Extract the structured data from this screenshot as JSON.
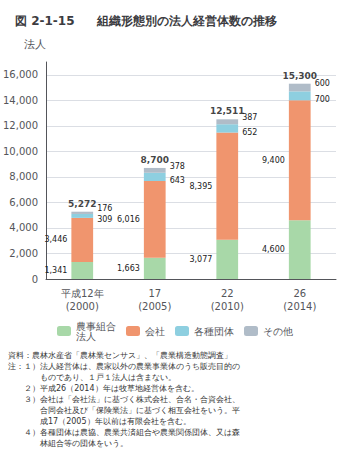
{
  "chart_data": {
    "type": "bar",
    "subtitle": "図 2-1-15",
    "title": "組織形態別の法人経営体数の推移",
    "ylabel": "法人",
    "categories": [
      "平成12年\n(2000)",
      "17\n(2005)",
      "22\n(2010)",
      "26\n(2014)"
    ],
    "series": [
      {
        "name": "農事組合\n法人",
        "color": "#a8d8a8",
        "values": [
          1341,
          1663,
          3077,
          4600
        ],
        "value_labels": [
          "1,341",
          "1,663",
          "3,077",
          "4,600"
        ]
      },
      {
        "name": "会社",
        "color": "#f0956e",
        "values": [
          3446,
          6016,
          8395,
          9400
        ],
        "value_labels": [
          "3,446",
          "6,016",
          "8,395",
          "9,400"
        ]
      },
      {
        "name": "各種団体",
        "color": "#8ecfe0",
        "values": [
          309,
          643,
          652,
          700
        ],
        "value_labels": [
          "309",
          "643",
          "652",
          "700"
        ]
      },
      {
        "name": "その他",
        "color": "#b0bcc8",
        "values": [
          176,
          378,
          387,
          600
        ],
        "value_labels": [
          "176",
          "378",
          "387",
          "600"
        ]
      }
    ],
    "totals": [
      5272,
      8700,
      12511,
      15300
    ],
    "total_labels": [
      "5,272",
      "8,700",
      "12,511",
      "15,300"
    ],
    "stacked": true,
    "data_labels": true,
    "ylim": [
      0,
      17000
    ],
    "yticks": [
      0,
      {
        "value": 2000,
        "label": "2,000"
      },
      {
        "value": 4000,
        "label": "4,000"
      },
      {
        "value": 6000,
        "label": "6,000"
      },
      {
        "value": 8000,
        "label": "8,000"
      },
      {
        "value": 10000,
        "label": "10,000"
      },
      {
        "value": 12000,
        "label": "12,000"
      },
      {
        "value": 14000,
        "label": "14,000"
      },
      {
        "value": 16000,
        "label": "16,000"
      }
    ],
    "grid": true,
    "legend": "bottom",
    "annotations": [
      "資料：農林水産省「農林業センサス」、「農業構造動態調査」",
      "注：１）法人経営体は、農家以外の農業事業体のうち販売目的の",
      "　　　　ものであり、１戸１法人は含まない。",
      "　　２）平成26（2014）年は牧草地経営体を含む。",
      "　　３）会社は「会社法」に基づく株式会社、合名・合資会社、",
      "　　　　合同会社及び「保険業法」に基づく相互会社をいう。平",
      "　　　　成17（2005）年以前は有限会社を含む。",
      "　　４）各種団体は農協、農業共済組合や農業関係団体、又は森",
      "　　　　林組合等の団体をいう。"
    ]
  }
}
